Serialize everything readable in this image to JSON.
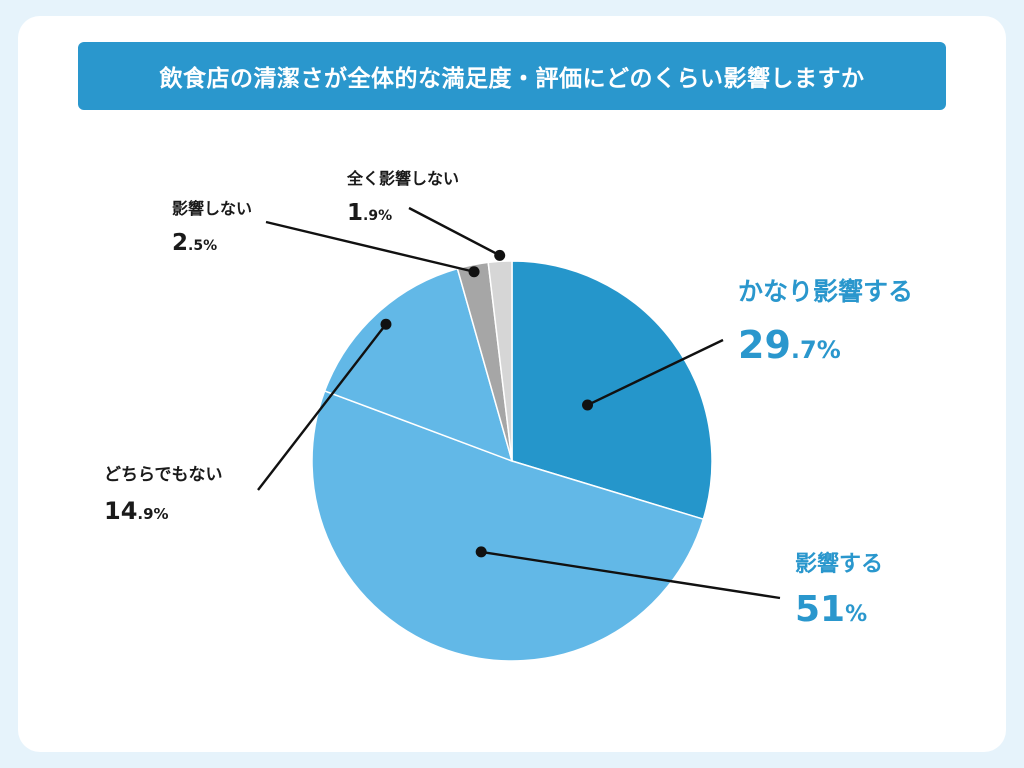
{
  "title": "飲食店の清潔さが全体的な満足度・評価にどのくらい影響しますか",
  "colors": {
    "background": "#e6f3fb",
    "title_bar": "#2a97cd",
    "title_text": "#ffffff",
    "accent_label": "#2a97cd",
    "dark_label": "#1a1a1a"
  },
  "chart_data": {
    "type": "pie",
    "start": "12 o'clock",
    "direction": "clockwise",
    "slices": [
      {
        "label": "かなり影響する",
        "value": 29.7,
        "int": "29",
        "dec": ".7",
        "unit": "%",
        "color": "#2596cb",
        "label_style": "accent"
      },
      {
        "label": "影響する",
        "value": 51,
        "int": "51",
        "dec": "",
        "unit": "%",
        "color": "#62b8e7",
        "label_style": "accent"
      },
      {
        "label": "どちらでもない",
        "value": 14.9,
        "int": "14",
        "dec": ".9",
        "unit": "%",
        "color": "#62b8e7",
        "label_style": "dark"
      },
      {
        "label": "影響しない",
        "value": 2.5,
        "int": "2",
        "dec": ".5",
        "unit": "%",
        "color": "#a6a6a6",
        "label_style": "dark"
      },
      {
        "label": "全く影響しない",
        "value": 1.9,
        "int": "1",
        "dec": ".9",
        "unit": "%",
        "color": "#d6d6d6",
        "label_style": "dark"
      }
    ]
  }
}
